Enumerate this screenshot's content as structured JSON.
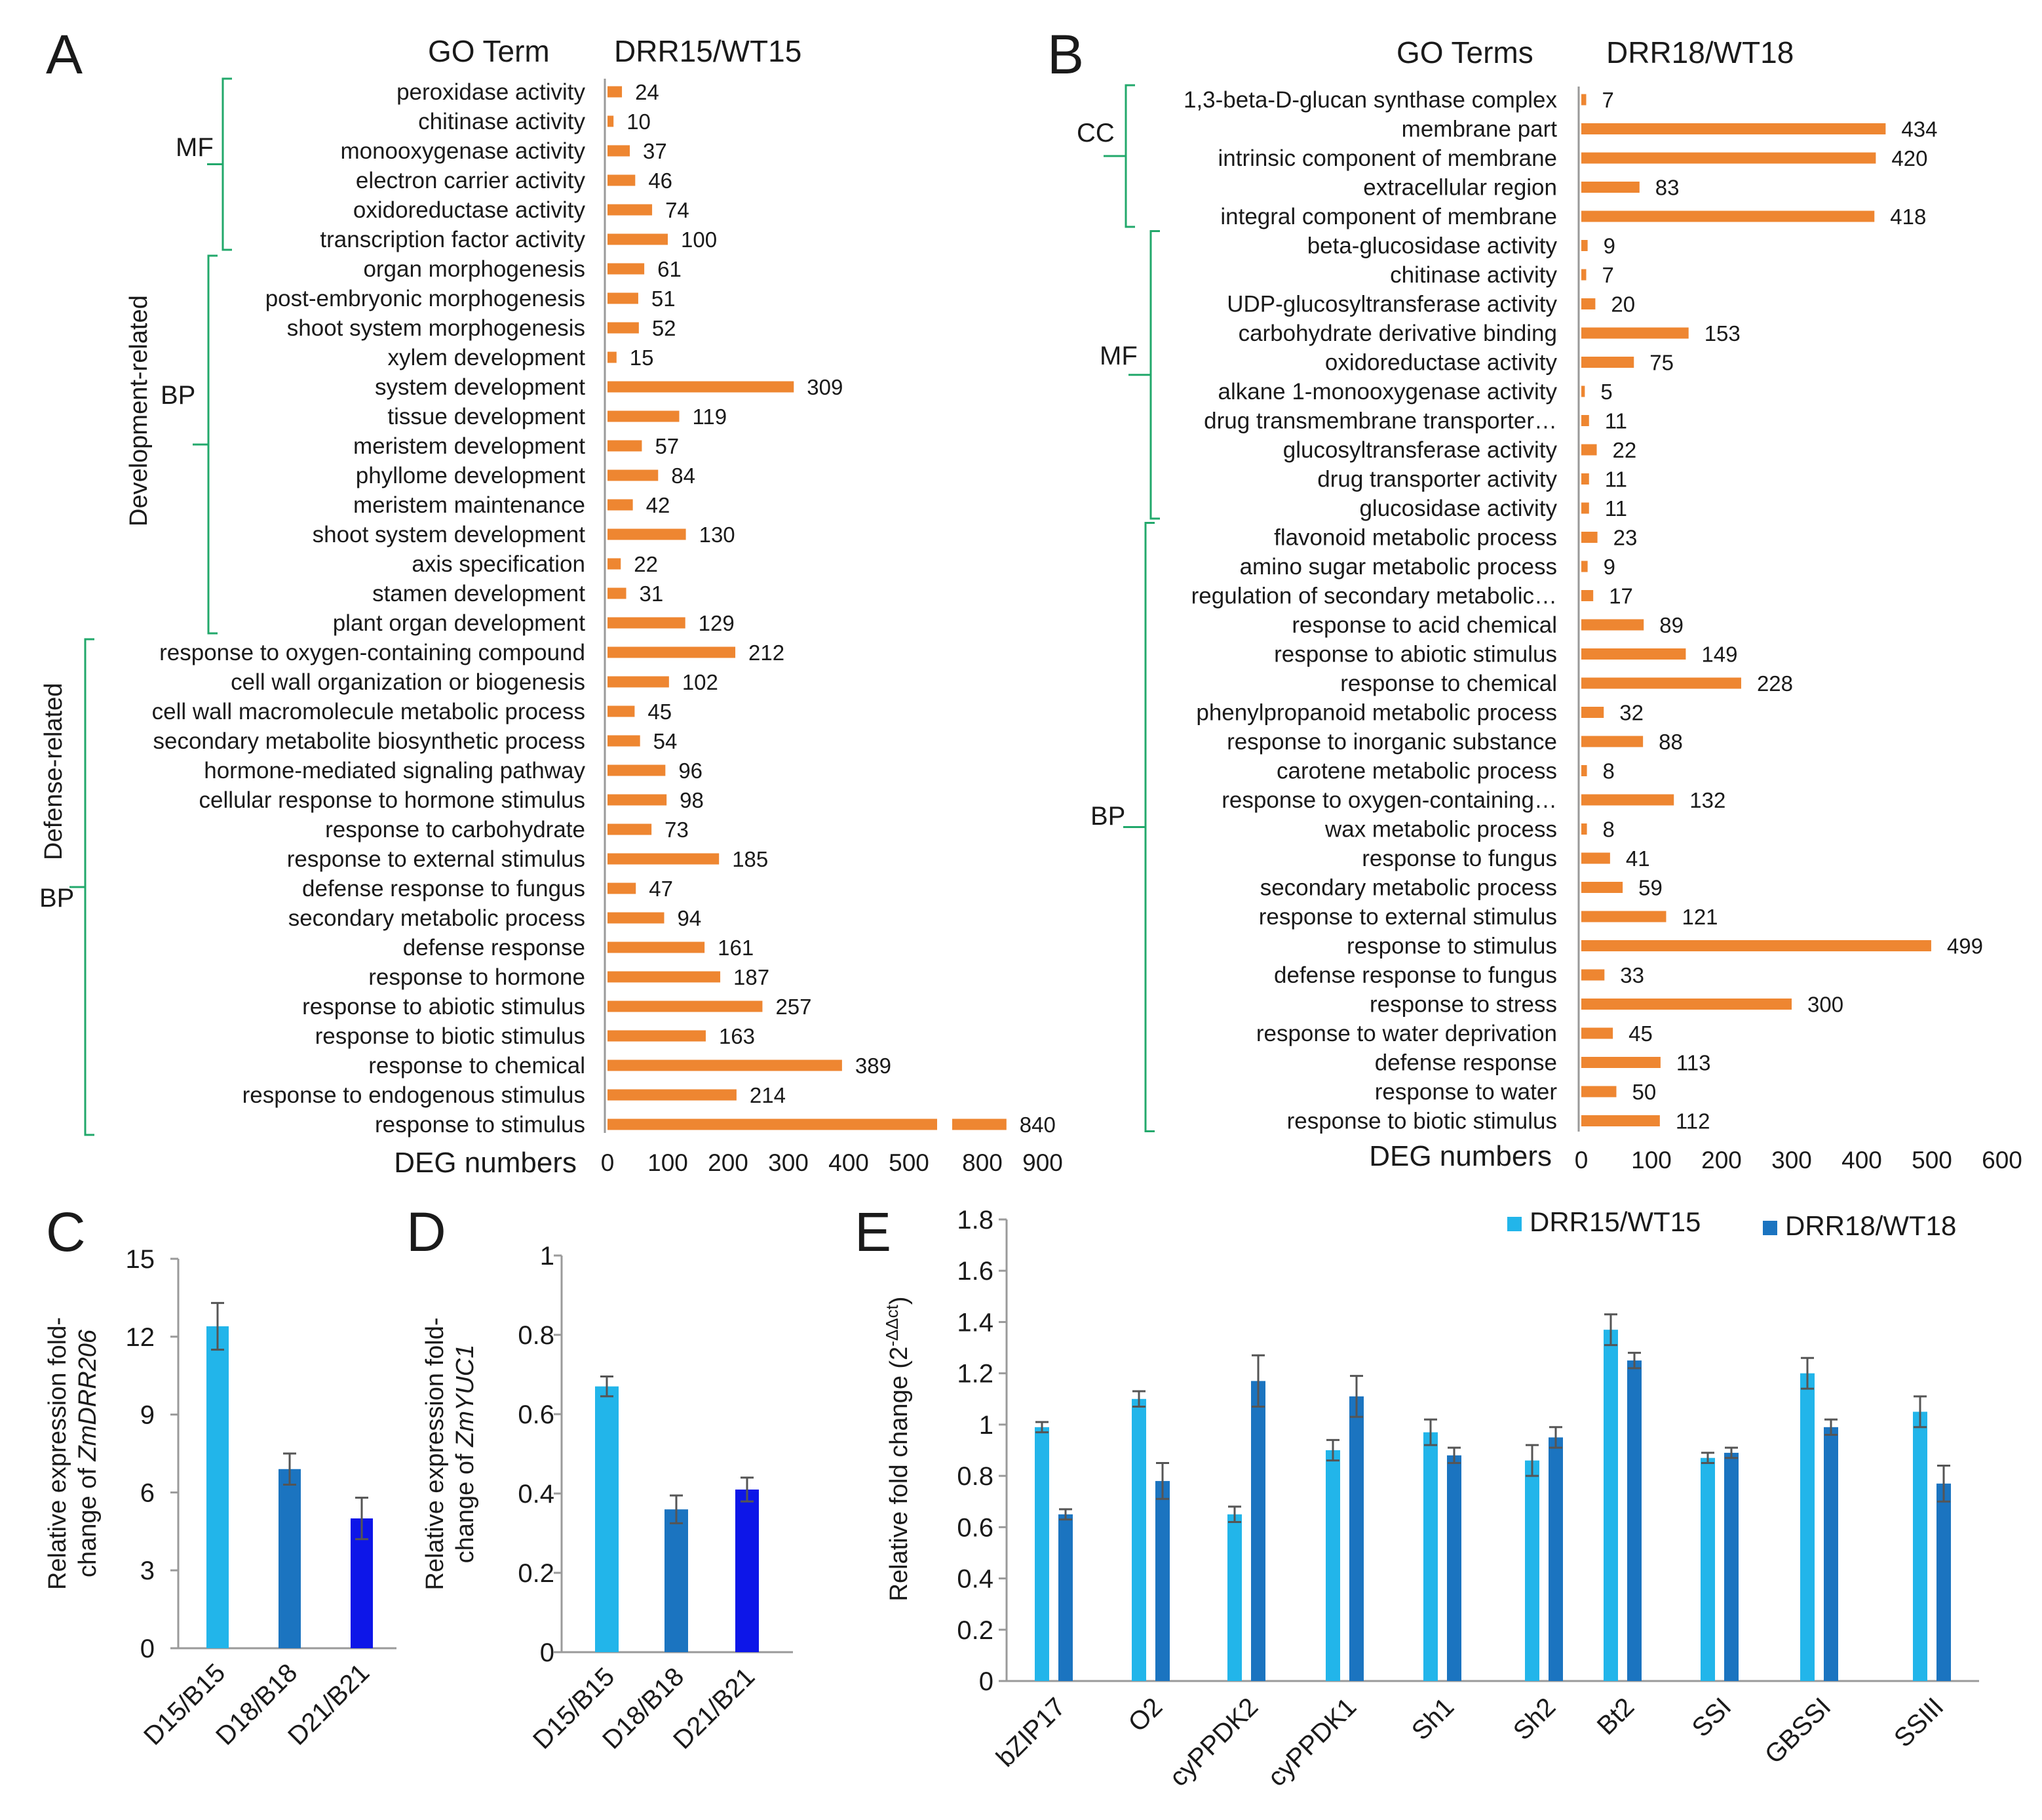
{
  "colors": {
    "bar_orange": "#ee8631",
    "bracket_green": "#22a86b",
    "light_blue": "#22b5ea",
    "mid_blue": "#1b74c0",
    "dark_blue": "#0d16e8",
    "axis": "#9a9a9a"
  },
  "chart_data": [
    {
      "panel": "A",
      "type": "bar",
      "orientation": "horizontal",
      "title_left": "GO Term",
      "title_right": "DRR15/WT15",
      "xlabel": "DEG numbers",
      "x_ticks": [
        "0",
        "100",
        "200",
        "300",
        "400",
        "500",
        "800",
        "900"
      ],
      "axis_break": {
        "break_from": 550,
        "resume_at": 750
      },
      "xlim": [
        0,
        900
      ],
      "categories": [
        "peroxidase activity",
        "chitinase activity",
        "monooxygenase activity",
        "electron carrier activity",
        "oxidoreductase activity",
        "transcription factor activity",
        "organ morphogenesis",
        "post-embryonic morphogenesis",
        "shoot system morphogenesis",
        "xylem development",
        "system development",
        "tissue development",
        "meristem development",
        "phyllome development",
        "meristem maintenance",
        "shoot system development",
        "axis specification",
        "stamen development",
        "plant organ development",
        "response to oxygen-containing compound",
        "cell wall organization or biogenesis",
        "cell wall macromolecule metabolic process",
        "secondary metabolite biosynthetic process",
        "hormone-mediated signaling pathway",
        "cellular response to hormone stimulus",
        "response to carbohydrate",
        "response to external stimulus",
        "defense response to fungus",
        "secondary metabolic process",
        "defense response",
        "response to hormone",
        "response to abiotic stimulus",
        "response to biotic stimulus",
        "response to chemical",
        "response to endogenous stimulus",
        "response to stimulus"
      ],
      "values": [
        24,
        10,
        37,
        46,
        74,
        100,
        61,
        51,
        52,
        15,
        309,
        119,
        57,
        84,
        42,
        130,
        22,
        31,
        129,
        212,
        102,
        45,
        54,
        96,
        98,
        73,
        185,
        47,
        94,
        161,
        187,
        257,
        163,
        389,
        214,
        840
      ],
      "groups": [
        {
          "label": "MF",
          "start": 0,
          "end": 5
        },
        {
          "label": "BP",
          "sublabel": "Development-related",
          "start": 6,
          "end": 18
        },
        {
          "label": "BP",
          "sublabel": "Defense-related",
          "start": 19,
          "end": 35
        }
      ]
    },
    {
      "panel": "B",
      "type": "bar",
      "orientation": "horizontal",
      "title_left": "GO Terms",
      "title_right": "DRR18/WT18",
      "xlabel": "DEG numbers",
      "x_ticks": [
        "0",
        "100",
        "200",
        "300",
        "400",
        "500",
        "600"
      ],
      "xlim": [
        0,
        600
      ],
      "categories": [
        "1,3-beta-D-glucan synthase complex",
        "membrane part",
        "intrinsic component of membrane",
        "extracellular region",
        "integral component of membrane",
        "beta-glucosidase activity",
        "chitinase activity",
        "UDP-glucosyltransferase activity",
        "carbohydrate derivative binding",
        "oxidoreductase activity",
        "alkane 1-monooxygenase activity",
        "drug transmembrane transporter…",
        "glucosyltransferase activity",
        "drug transporter activity",
        "glucosidase activity",
        "flavonoid metabolic process",
        "amino sugar metabolic process",
        "regulation of secondary metabolic…",
        "response to acid chemical",
        "response to abiotic stimulus",
        "response to chemical",
        "phenylpropanoid metabolic process",
        "response to inorganic substance",
        "carotene metabolic process",
        "response to oxygen-containing…",
        "wax metabolic process",
        "response to fungus",
        "secondary metabolic process",
        "response to external stimulus",
        "response to stimulus",
        "defense response to fungus",
        "response to stress",
        "response to water deprivation",
        "defense response",
        "response to water",
        "response to biotic stimulus"
      ],
      "values": [
        7,
        434,
        420,
        83,
        418,
        9,
        7,
        20,
        153,
        75,
        5,
        11,
        22,
        11,
        11,
        23,
        9,
        17,
        89,
        149,
        228,
        32,
        88,
        8,
        132,
        8,
        41,
        59,
        121,
        499,
        33,
        300,
        45,
        113,
        50,
        112
      ],
      "groups": [
        {
          "label": "CC",
          "start": 0,
          "end": 4
        },
        {
          "label": "MF",
          "start": 5,
          "end": 14
        },
        {
          "label": "BP",
          "start": 15,
          "end": 35
        }
      ]
    },
    {
      "panel": "C",
      "type": "bar",
      "ylabel_line1": "Relative expression fold-",
      "ylabel_line2": "change of ",
      "ylabel_gene": "ZmDRR206",
      "categories": [
        "D15/B15",
        "D18/B18",
        "D21/B21"
      ],
      "values": [
        12.4,
        6.9,
        5.0
      ],
      "errors": [
        0.9,
        0.6,
        0.8
      ],
      "y_ticks": [
        "0",
        "3",
        "6",
        "9",
        "12",
        "15"
      ],
      "ylim": [
        0,
        15
      ]
    },
    {
      "panel": "D",
      "type": "bar",
      "ylabel_line1": "Relative expression fold-",
      "ylabel_line2": "change of ",
      "ylabel_gene": "ZmYUC1",
      "categories": [
        "D15/B15",
        "D18/B18",
        "D21/B21"
      ],
      "values": [
        0.67,
        0.36,
        0.41
      ],
      "errors": [
        0.025,
        0.035,
        0.03
      ],
      "y_ticks": [
        "0",
        "0.2",
        "0.4",
        "0.6",
        "0.8",
        "1"
      ],
      "ylim": [
        0,
        1
      ]
    },
    {
      "panel": "E",
      "type": "bar",
      "ylabel": "Relative fold change (2",
      "ylabel_sup": "-ΔΔct",
      "ylabel_end": ")",
      "categories": [
        "bZIP17",
        "O2",
        "cyPPDK2",
        "cyPPDK1",
        "Sh1",
        "Sh2",
        "Bt2",
        "SSI",
        "GBSSI",
        "SSIII"
      ],
      "series": [
        {
          "name": "DRR15/WT15",
          "values": [
            0.99,
            1.1,
            0.65,
            0.9,
            0.97,
            0.86,
            1.37,
            0.87,
            1.2,
            1.05
          ],
          "errors": [
            0.02,
            0.03,
            0.03,
            0.04,
            0.05,
            0.06,
            0.06,
            0.02,
            0.06,
            0.06
          ]
        },
        {
          "name": "DRR18/WT18",
          "values": [
            0.65,
            0.78,
            1.17,
            1.11,
            0.88,
            0.95,
            1.25,
            0.89,
            0.99,
            0.77
          ],
          "errors": [
            0.02,
            0.07,
            0.1,
            0.08,
            0.03,
            0.04,
            0.03,
            0.02,
            0.03,
            0.07
          ]
        }
      ],
      "y_ticks": [
        "0",
        "0.2",
        "0.4",
        "0.6",
        "0.8",
        "1",
        "1.2",
        "1.4",
        "1.6",
        "1.8"
      ],
      "ylim": [
        0,
        1.8
      ]
    }
  ]
}
